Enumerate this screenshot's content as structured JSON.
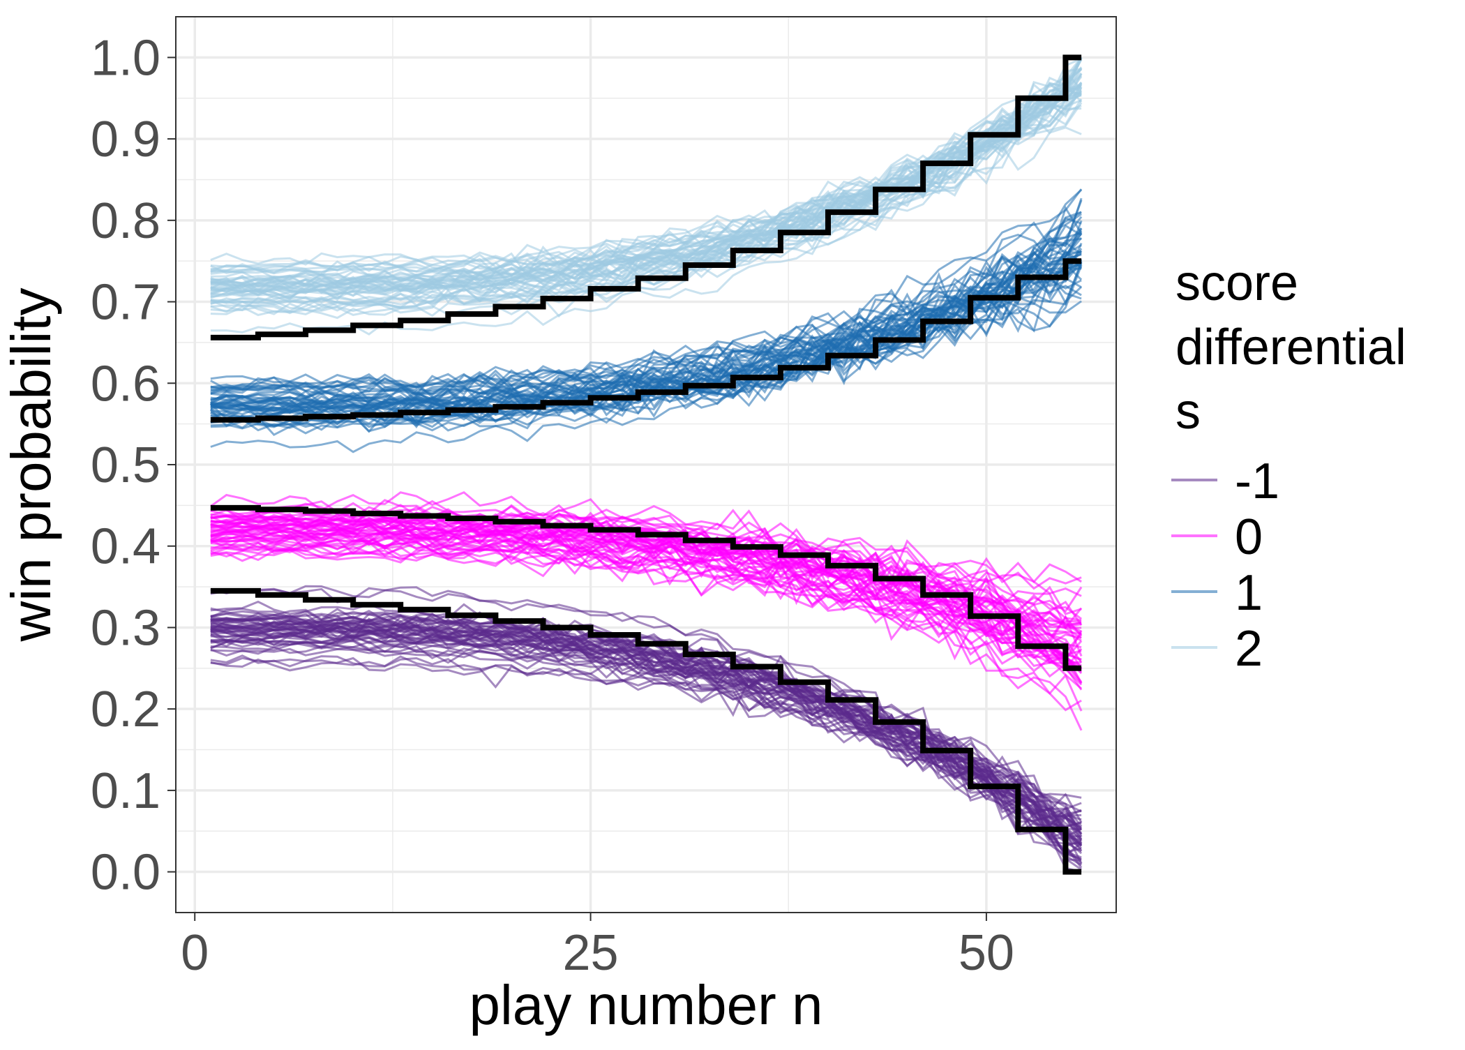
{
  "chart_data": {
    "type": "line",
    "title": "",
    "xlabel": "play number n",
    "ylabel": "win probability",
    "xlim": [
      -1.2,
      58.2
    ],
    "ylim": [
      -0.05,
      1.05
    ],
    "x_ticks": [
      0,
      25,
      50
    ],
    "x_tick_labels": [
      "0",
      "25",
      "50"
    ],
    "y_ticks": [
      0.0,
      0.1,
      0.2,
      0.3,
      0.4,
      0.5,
      0.6,
      0.7,
      0.8,
      0.9,
      1.0
    ],
    "y_tick_labels": [
      "0.0",
      "0.1",
      "0.2",
      "0.3",
      "0.4",
      "0.5",
      "0.6",
      "0.7",
      "0.8",
      "0.9",
      "1.0"
    ],
    "grid": true,
    "theme": "bw",
    "legend": {
      "title_lines": [
        "score",
        "differential",
        "s"
      ],
      "position": "right",
      "items": [
        {
          "label": "-1",
          "color": "#5b2a8c",
          "opacity": 0.55
        },
        {
          "label": "0",
          "color": "#ff00ff",
          "opacity": 0.55
        },
        {
          "label": "1",
          "color": "#1f6eb0",
          "opacity": 0.55
        },
        {
          "label": "2",
          "color": "#9ecae1",
          "opacity": 0.55
        }
      ]
    },
    "series": [
      {
        "name": "-1",
        "color": "#5b2a8c",
        "sim_curve": {
          "n_lines": 50,
          "x_start": 1,
          "x_end": 56,
          "start_mean": 0.3,
          "start_spread": 0.03,
          "end_mean": 0.04,
          "end_spread": 0.03,
          "noise": 0.008
        },
        "true_steps": {
          "x": [
            1,
            4,
            7,
            10,
            13,
            16,
            19,
            22,
            25,
            28,
            31,
            34,
            37,
            40,
            43,
            46,
            49,
            52,
            55
          ],
          "y": [
            0.345,
            0.34,
            0.334,
            0.328,
            0.322,
            0.315,
            0.308,
            0.3,
            0.291,
            0.28,
            0.267,
            0.252,
            0.233,
            0.211,
            0.184,
            0.149,
            0.105,
            0.052,
            0.0
          ],
          "x_end": 56
        }
      },
      {
        "name": "0",
        "color": "#ff00ff",
        "sim_curve": {
          "n_lines": 50,
          "x_start": 1,
          "x_end": 56,
          "start_mean": 0.42,
          "start_spread": 0.03,
          "end_mean": 0.28,
          "end_spread": 0.08,
          "noise": 0.009
        },
        "true_steps": {
          "x": [
            1,
            4,
            7,
            10,
            13,
            16,
            19,
            22,
            25,
            28,
            31,
            34,
            37,
            40,
            43,
            46,
            49,
            52,
            55
          ],
          "y": [
            0.447,
            0.445,
            0.443,
            0.44,
            0.437,
            0.434,
            0.43,
            0.425,
            0.42,
            0.414,
            0.407,
            0.399,
            0.389,
            0.376,
            0.36,
            0.34,
            0.314,
            0.277,
            0.25
          ],
          "x_end": 56
        }
      },
      {
        "name": "1",
        "color": "#1f6eb0",
        "sim_curve": {
          "n_lines": 50,
          "x_start": 1,
          "x_end": 56,
          "start_mean": 0.575,
          "start_spread": 0.035,
          "end_mean": 0.76,
          "end_spread": 0.05,
          "noise": 0.01
        },
        "true_steps": {
          "x": [
            1,
            4,
            7,
            10,
            13,
            16,
            19,
            22,
            25,
            28,
            31,
            34,
            37,
            40,
            43,
            46,
            49,
            52,
            55
          ],
          "y": [
            0.555,
            0.557,
            0.559,
            0.561,
            0.564,
            0.567,
            0.571,
            0.576,
            0.582,
            0.589,
            0.597,
            0.607,
            0.619,
            0.634,
            0.653,
            0.676,
            0.705,
            0.73,
            0.75
          ],
          "x_end": 56
        }
      },
      {
        "name": "2",
        "color": "#9ecae1",
        "sim_curve": {
          "n_lines": 50,
          "x_start": 1,
          "x_end": 56,
          "start_mean": 0.715,
          "start_spread": 0.03,
          "end_mean": 0.97,
          "end_spread": 0.03,
          "noise": 0.008
        },
        "true_steps": {
          "x": [
            1,
            4,
            7,
            10,
            13,
            16,
            19,
            22,
            25,
            28,
            31,
            34,
            37,
            40,
            43,
            46,
            49,
            52,
            55
          ],
          "y": [
            0.656,
            0.66,
            0.665,
            0.671,
            0.677,
            0.685,
            0.694,
            0.704,
            0.716,
            0.729,
            0.745,
            0.763,
            0.785,
            0.81,
            0.838,
            0.87,
            0.905,
            0.95,
            1.0
          ],
          "x_end": 56
        }
      }
    ]
  }
}
